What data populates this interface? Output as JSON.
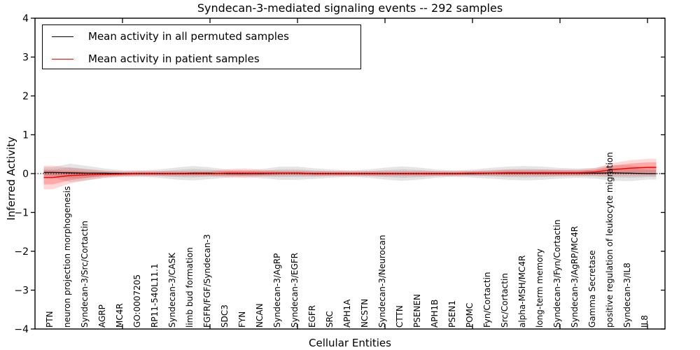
{
  "figure_title": "Syndecan-3-mediated signaling events -- 292 samples",
  "axes": {
    "xlabel": "Cellular Entities",
    "ylabel": "Inferred Activity"
  },
  "legend": {
    "entries": [
      {
        "label": "Mean activity in all permuted samples",
        "color": "#000000"
      },
      {
        "label": "Mean activity in patient samples",
        "color": "#ff0000"
      }
    ]
  },
  "colors": {
    "permuted_line": "#000000",
    "patient_line": "#ff0000",
    "permuted_band": "#000000",
    "patient_band": "#ff0000",
    "zero_line": "#000000",
    "frame": "#000000"
  },
  "chart_data": {
    "type": "line",
    "title": "Syndecan-3-mediated signaling events -- 292 samples",
    "xlabel": "Cellular Entities",
    "ylabel": "Inferred Activity",
    "ylim": [
      -4,
      4
    ],
    "yticks": [
      4,
      3,
      2,
      1,
      0,
      -1,
      -2,
      -3,
      -4
    ],
    "xtick_interval": 5,
    "grid": false,
    "legend_position": "upper left",
    "zero_reference_line": true,
    "categories": [
      "PTN",
      "neuron projection morphogenesis",
      "Syndecan-3/Src/Cortactin",
      "AGRP",
      "MC4R",
      "GO:0007205",
      "RP11-540L11.1",
      "Syndecan-3/CASK",
      "limb bud formation",
      "FGFR/FGF/Syndecan-3",
      "SDC3",
      "FYN",
      "NCAN",
      "Syndecan-3/AgRP",
      "Syndecan-3/EGFR",
      "EGFR",
      "SRC",
      "APH1A",
      "NCSTN",
      "Syndecan-3/Neurocan",
      "CTTN",
      "PSENEN",
      "APH1B",
      "PSEN1",
      "POMC",
      "Fyn/Cortactin",
      "Src/Cortactin",
      "alpha-MSH/MC4R",
      "long-term memory",
      "Syndecan-3/Fyn/Cortactin",
      "Syndecan-3/AgRP/MC4R",
      "Gamma Secretase",
      "positive regulation of leukocyte migration",
      "Syndecan-3/IL8",
      "IL8"
    ],
    "series": [
      {
        "name": "Mean activity in all permuted samples",
        "values": [
          0.03,
          0.02,
          0.01,
          0.01,
          0.0,
          0.0,
          0.0,
          0.0,
          0.01,
          0.01,
          0.0,
          0.0,
          0.0,
          0.01,
          0.01,
          0.0,
          0.0,
          0.0,
          0.0,
          0.0,
          0.0,
          0.0,
          0.0,
          0.0,
          0.0,
          0.01,
          0.01,
          0.01,
          0.01,
          0.01,
          0.01,
          0.01,
          0.02,
          0.01,
          0.0
        ],
        "band_halfwidth": [
          0.08,
          0.14,
          0.11,
          0.07,
          0.05,
          0.05,
          0.06,
          0.09,
          0.11,
          0.09,
          0.06,
          0.05,
          0.07,
          0.1,
          0.1,
          0.08,
          0.06,
          0.05,
          0.06,
          0.09,
          0.11,
          0.09,
          0.06,
          0.05,
          0.06,
          0.08,
          0.1,
          0.11,
          0.1,
          0.08,
          0.07,
          0.08,
          0.12,
          0.12,
          0.09
        ]
      },
      {
        "name": "Mean activity in patient samples",
        "values": [
          -0.1,
          -0.05,
          -0.03,
          -0.02,
          -0.01,
          0.0,
          0.0,
          0.0,
          0.0,
          0.0,
          0.01,
          0.01,
          0.01,
          0.01,
          0.01,
          0.0,
          0.0,
          0.0,
          0.0,
          0.0,
          0.0,
          0.0,
          0.0,
          0.0,
          0.01,
          0.01,
          0.02,
          0.02,
          0.02,
          0.02,
          0.02,
          0.04,
          0.1,
          0.14,
          0.16
        ],
        "band_halfwidth": [
          0.18,
          0.12,
          0.08,
          0.05,
          0.04,
          0.04,
          0.04,
          0.04,
          0.04,
          0.04,
          0.06,
          0.07,
          0.05,
          0.04,
          0.04,
          0.04,
          0.04,
          0.04,
          0.04,
          0.04,
          0.04,
          0.04,
          0.04,
          0.04,
          0.04,
          0.04,
          0.05,
          0.05,
          0.05,
          0.05,
          0.05,
          0.06,
          0.1,
          0.12,
          0.13
        ]
      }
    ]
  }
}
